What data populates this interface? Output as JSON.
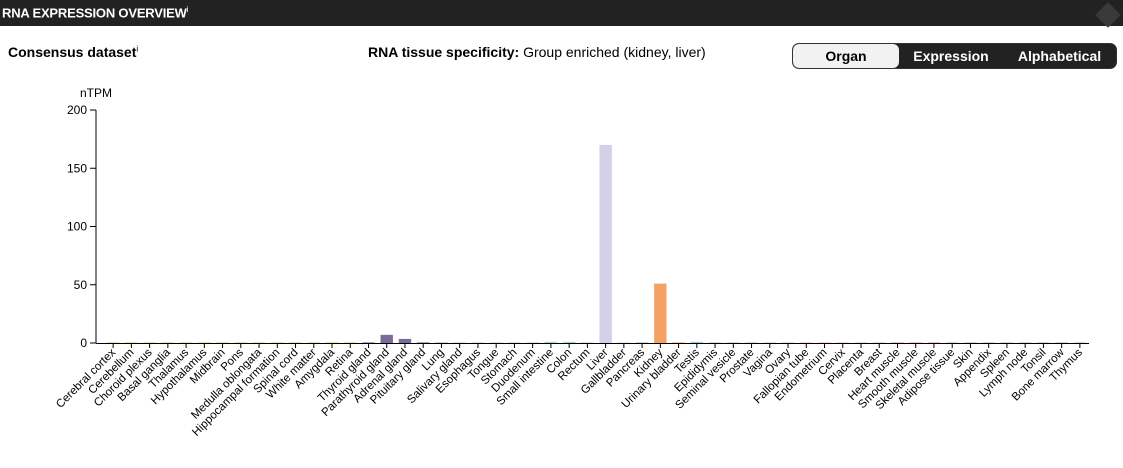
{
  "header": {
    "title": "RNA EXPRESSION OVERVIEW",
    "info_mark": "i"
  },
  "dataset": {
    "label": "Consensus dataset",
    "info_mark": "i"
  },
  "specificity": {
    "label": "RNA tissue specificity:",
    "value": "Group enriched (kidney, liver)"
  },
  "sort_toggle": {
    "options": [
      "Organ",
      "Expression",
      "Alphabetical"
    ],
    "selected": "Organ"
  },
  "chart_data": {
    "type": "bar",
    "ylabel": "nTPM",
    "ylim": [
      0,
      200
    ],
    "yticks": [
      0,
      50,
      100,
      150,
      200
    ],
    "grid": false,
    "categories": [
      "Cerebral cortex",
      "Cerebellum",
      "Choroid plexus",
      "Basal ganglia",
      "Thalamus",
      "Hypothalamus",
      "Midbrain",
      "Pons",
      "Medulla oblongata",
      "Hippocampal formation",
      "Spinal cord",
      "White matter",
      "Amygdala",
      "Retina",
      "Thyroid gland",
      "Parathyroid gland",
      "Adrenal gland",
      "Pituitary gland",
      "Lung",
      "Salivary gland",
      "Esophagus",
      "Tongue",
      "Stomach",
      "Duodenum",
      "Small intestine",
      "Colon",
      "Rectum",
      "Liver",
      "Gallbladder",
      "Pancreas",
      "Kidney",
      "Urinary bladder",
      "Testis",
      "Epididymis",
      "Seminal vesicle",
      "Prostate",
      "Vagina",
      "Ovary",
      "Fallopian tube",
      "Endometrium",
      "Cervix",
      "Placenta",
      "Breast",
      "Heart muscle",
      "Smooth muscle",
      "Skeletal muscle",
      "Adipose tissue",
      "Skin",
      "Appendix",
      "Spleen",
      "Lymph node",
      "Tonsil",
      "Bone marrow",
      "Thymus"
    ],
    "values": [
      0.3,
      0.3,
      0.3,
      0.3,
      0.3,
      0.3,
      0.3,
      0.3,
      0.3,
      0.3,
      0.3,
      0.3,
      0.3,
      0.4,
      0.5,
      7,
      3.5,
      0.5,
      0.3,
      0.3,
      0.3,
      0.3,
      0.3,
      0.5,
      1,
      1,
      0.5,
      170,
      0.5,
      0.5,
      51,
      0.5,
      1,
      0.3,
      0.3,
      0.3,
      0.3,
      0.3,
      0.3,
      0.3,
      0.3,
      0.3,
      0.3,
      0.3,
      0.3,
      0.3,
      0.3,
      0.5,
      0.3,
      0.3,
      0.3,
      0.3,
      0.3,
      0.3
    ],
    "colors": {
      "brain": "#e8c85c",
      "retina": "#e8c85c",
      "endocrine": "#7b6a9c",
      "lung": "#8fb6d9",
      "gi": "#a8d8d0",
      "liver": "#d5cfe8",
      "pancreas": "#9bc79b",
      "kidney": "#f4a263",
      "male": "#9fcad9",
      "female": "#f3b3c8",
      "muscle": "#e49b9b",
      "skin": "#d9b28a",
      "lymphoid": "#b8b8b8"
    },
    "category_groups": [
      "brain",
      "brain",
      "brain",
      "brain",
      "brain",
      "brain",
      "brain",
      "brain",
      "brain",
      "brain",
      "brain",
      "brain",
      "brain",
      "retina",
      "endocrine",
      "endocrine",
      "endocrine",
      "endocrine",
      "lung",
      "gi",
      "gi",
      "gi",
      "gi",
      "gi",
      "gi",
      "gi",
      "gi",
      "liver",
      "liver",
      "pancreas",
      "kidney",
      "kidney",
      "male",
      "male",
      "male",
      "male",
      "female",
      "female",
      "female",
      "female",
      "female",
      "female",
      "female",
      "muscle",
      "muscle",
      "muscle",
      "skin",
      "skin",
      "lymphoid",
      "lymphoid",
      "lymphoid",
      "lymphoid",
      "lymphoid",
      "lymphoid"
    ]
  }
}
